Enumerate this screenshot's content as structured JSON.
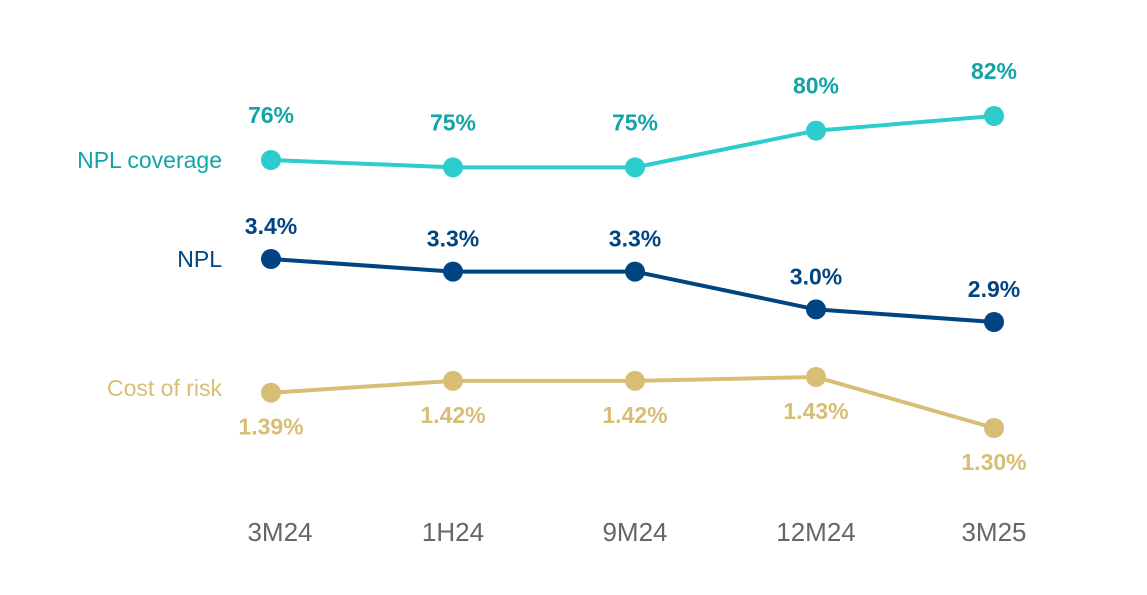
{
  "chart_data": {
    "type": "line",
    "categories": [
      "3M24",
      "1H24",
      "9M24",
      "12M24",
      "3M25"
    ],
    "grid": false,
    "legend_placement": "left (inline series labels)",
    "series": [
      {
        "name": "NPL coverage",
        "values": [
          76,
          75,
          75,
          80,
          82
        ],
        "labels": [
          "76%",
          "75%",
          "75%",
          "80%",
          "82%"
        ],
        "color": "#2dcccd",
        "text_color": "#12a4a6",
        "label_position": "above"
      },
      {
        "name": "NPL",
        "values": [
          3.4,
          3.3,
          3.3,
          3.0,
          2.9
        ],
        "labels": [
          "3.4%",
          "3.3%",
          "3.3%",
          "3.0%",
          "2.9%"
        ],
        "color": "#004481",
        "text_color": "#004481",
        "label_position": "above"
      },
      {
        "name": "Cost of risk",
        "values": [
          1.39,
          1.42,
          1.42,
          1.43,
          1.3
        ],
        "labels": [
          "1.39%",
          "1.42%",
          "1.42%",
          "1.43%",
          "1.30%"
        ],
        "color": "#d8be75",
        "text_color": "#d8be75",
        "label_position": "below"
      }
    ]
  }
}
